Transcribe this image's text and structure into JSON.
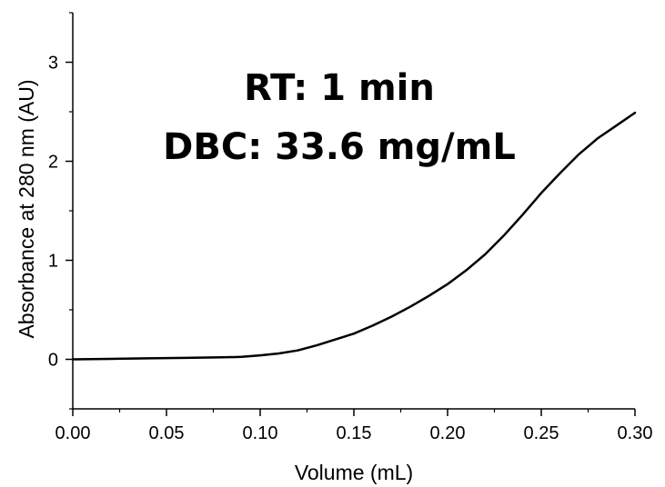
{
  "chart_data": {
    "type": "line",
    "xlabel": "Volume (mL)",
    "ylabel": "Absorbance at 280 nm (AU)",
    "xlim": [
      0.0,
      0.3
    ],
    "ylim": [
      -0.5,
      3.5
    ],
    "xticks": [
      "0.00",
      "0.05",
      "0.10",
      "0.15",
      "0.20",
      "0.25",
      "0.30"
    ],
    "xtick_values": [
      0.0,
      0.05,
      0.1,
      0.15,
      0.2,
      0.25,
      0.3
    ],
    "yticks": [
      "0",
      "1",
      "2",
      "3"
    ],
    "ytick_values": [
      0,
      1,
      2,
      3
    ],
    "grid": false,
    "annotations": [
      "RT: 1 min",
      "DBC: 33.6 mg/mL"
    ],
    "series": [
      {
        "color": "#000000",
        "x": [
          0.0,
          0.02,
          0.04,
          0.06,
          0.08,
          0.09,
          0.1,
          0.11,
          0.12,
          0.13,
          0.14,
          0.15,
          0.16,
          0.17,
          0.18,
          0.19,
          0.2,
          0.21,
          0.22,
          0.23,
          0.24,
          0.25,
          0.26,
          0.27,
          0.28,
          0.29,
          0.3
        ],
        "y": [
          0.0,
          0.005,
          0.01,
          0.015,
          0.02,
          0.025,
          0.04,
          0.06,
          0.09,
          0.14,
          0.2,
          0.26,
          0.34,
          0.43,
          0.53,
          0.64,
          0.76,
          0.9,
          1.06,
          1.25,
          1.46,
          1.68,
          1.88,
          2.07,
          2.23,
          2.36,
          2.49
        ]
      }
    ]
  }
}
